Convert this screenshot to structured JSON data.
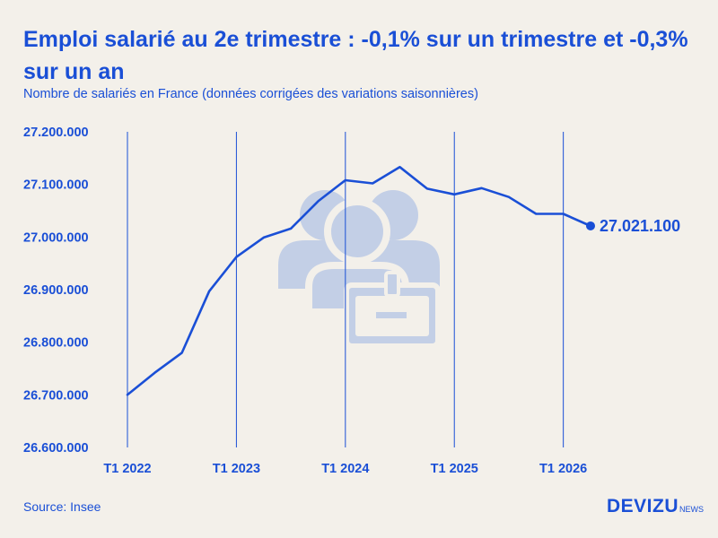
{
  "header": {
    "title": "Emploi salarié au 2e trimestre : -0,1% sur un trimestre et -0,3% sur un an",
    "subtitle": "Nombre de salariés en France (données corrigées des variations saisonnières)"
  },
  "footer": {
    "source": "Source: Insee",
    "brand": "DEVIZU",
    "brand_suffix": "NEWS"
  },
  "colors": {
    "accent": "#1a4fd6",
    "background": "#f3f0ea",
    "watermark": "#c3cfe6"
  },
  "watermark_icon": "employees-badge-icon",
  "chart_data": {
    "type": "line",
    "title": "Emploi salarié au 2e trimestre : -0,1% sur un trimestre et -0,3% sur un an",
    "subtitle": "Nombre de salariés en France (données corrigées des variations saisonnières)",
    "xlabel": "",
    "ylabel": "",
    "ylim": [
      26600000,
      27200000
    ],
    "yticks": [
      26600000,
      26700000,
      26800000,
      26900000,
      27000000,
      27100000,
      27200000
    ],
    "ytick_labels": [
      "26.600.000",
      "26.700.000",
      "26.800.000",
      "26.900.000",
      "27.000.000",
      "27.100.000",
      "27.200.000"
    ],
    "x_labels": [
      "T1 2022",
      "T1 2023",
      "T1 2024",
      "T1 2025",
      "T1 2026"
    ],
    "x_label_positions": [
      0,
      4,
      8,
      12,
      16
    ],
    "grid": "vertical lines at T1 quarters",
    "series": [
      {
        "values": [
          26700000,
          26742000,
          26780000,
          26897000,
          26962000,
          26999000,
          27016000,
          27068000,
          27108000,
          27102000,
          27133000,
          27092000,
          27081000,
          27093000,
          27076000,
          27044000,
          27044000,
          27021100
        ]
      }
    ],
    "last_value_label": "27.021.100"
  }
}
